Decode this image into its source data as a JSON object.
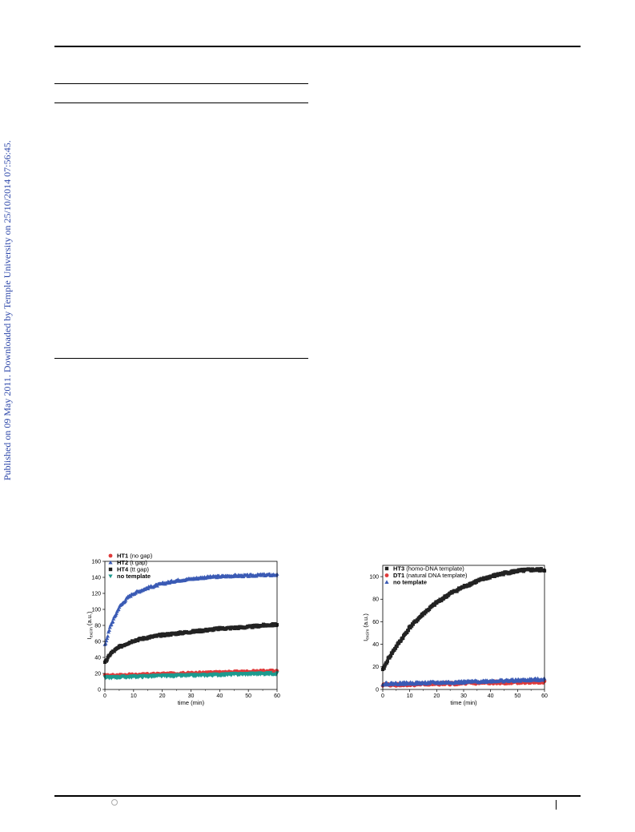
{
  "sidebar": {
    "published_text": "Published on 09 May 2011. Downloaded by Temple University on 25/10/2014 07:56:45."
  },
  "colors": {
    "black": "#222222",
    "red": "#e03a3a",
    "blue": "#3b5bb5",
    "teal": "#1c9a8e"
  },
  "chart_data": [
    {
      "type": "scatter",
      "title": "",
      "xlabel": "time (min)",
      "ylabel": "I",
      "ylabel_sub": "excim",
      "ylabel_unit": "(a.u.)",
      "xlim": [
        0,
        60
      ],
      "ylim": [
        0,
        160
      ],
      "xticks": [
        0,
        10,
        20,
        30,
        40,
        50,
        60
      ],
      "yticks": [
        0,
        20,
        40,
        60,
        80,
        100,
        120,
        140,
        160
      ],
      "legend_position": "top-left",
      "series": [
        {
          "name": "HT1",
          "detail": "(no gap)",
          "marker": "circle",
          "color": "#e03a3a",
          "x": [
            0,
            10,
            20,
            30,
            40,
            50,
            60
          ],
          "y": [
            17,
            18,
            19,
            20,
            21,
            22,
            23
          ]
        },
        {
          "name": "HT2",
          "detail": "(t gap)",
          "marker": "triangle-up",
          "color": "#3b5bb5",
          "x": [
            0,
            2,
            5,
            8,
            10,
            15,
            20,
            25,
            30,
            35,
            40,
            45,
            50,
            55,
            60
          ],
          "y": [
            55,
            80,
            103,
            115,
            120,
            127,
            132,
            136,
            138,
            140,
            141,
            142,
            142,
            143,
            143
          ]
        },
        {
          "name": "HT4",
          "detail": "(tt gap)",
          "marker": "square",
          "color": "#222222",
          "x": [
            0,
            2,
            5,
            8,
            10,
            15,
            20,
            25,
            30,
            35,
            40,
            45,
            50,
            55,
            60
          ],
          "y": [
            33,
            45,
            53,
            58,
            61,
            65,
            68,
            70,
            72,
            74,
            76,
            77,
            78,
            80,
            81
          ]
        },
        {
          "name": "no template",
          "detail": "",
          "marker": "triangle-down",
          "color": "#1c9a8e",
          "x": [
            0,
            10,
            20,
            30,
            40,
            50,
            60
          ],
          "y": [
            15,
            16,
            17,
            17.5,
            18.5,
            19.5,
            20
          ]
        }
      ]
    },
    {
      "type": "scatter",
      "title": "",
      "xlabel": "time (min)",
      "ylabel": "I",
      "ylabel_sub": "excim",
      "ylabel_unit": "(a.u.)",
      "xlim": [
        0,
        60
      ],
      "ylim": [
        0,
        110
      ],
      "xticks": [
        0,
        10,
        20,
        30,
        40,
        50,
        60
      ],
      "yticks": [
        0,
        20,
        40,
        60,
        80,
        100
      ],
      "legend_position": "top-left",
      "series": [
        {
          "name": "HT3",
          "detail": "(homo-DNA template)",
          "marker": "square",
          "color": "#222222",
          "x": [
            0,
            2,
            5,
            8,
            10,
            15,
            20,
            25,
            30,
            35,
            40,
            45,
            50,
            55,
            60
          ],
          "y": [
            17,
            27,
            38,
            48,
            55,
            67,
            77,
            85,
            91,
            96,
            100,
            103,
            105,
            106,
            106
          ]
        },
        {
          "name": "DT1",
          "detail": "(natural DNA template)",
          "marker": "circle",
          "color": "#e03a3a",
          "x": [
            0,
            10,
            20,
            30,
            40,
            50,
            60
          ],
          "y": [
            4,
            4.5,
            5,
            5.5,
            6,
            6.5,
            7
          ]
        },
        {
          "name": "no template",
          "detail": "",
          "marker": "triangle-up",
          "color": "#3b5bb5",
          "x": [
            0,
            10,
            20,
            30,
            40,
            50,
            60
          ],
          "y": [
            5,
            5.5,
            6,
            6.5,
            7.5,
            8,
            9
          ]
        }
      ]
    }
  ]
}
